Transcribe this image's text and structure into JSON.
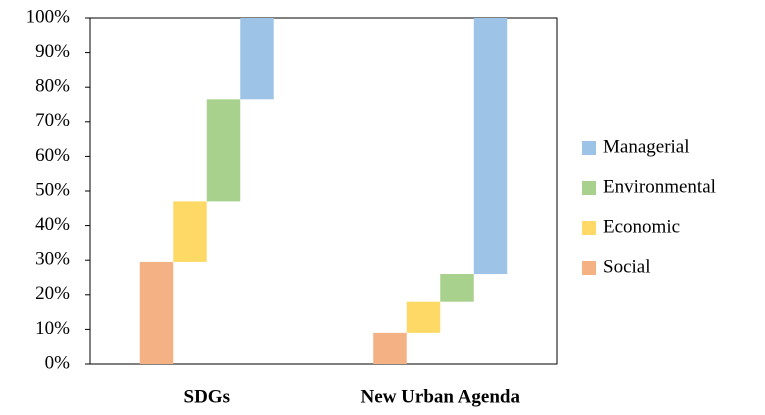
{
  "chart_data": {
    "type": "waterfall-stack",
    "categories": [
      "SDGs",
      "New Urban Agenda"
    ],
    "series": [
      {
        "name": "Social",
        "color": "#f4b183",
        "values": [
          29.5,
          9
        ]
      },
      {
        "name": "Economic",
        "color": "#ffd966",
        "values": [
          17.5,
          9
        ]
      },
      {
        "name": "Environmental",
        "color": "#a9d18e",
        "values": [
          29.5,
          8
        ]
      },
      {
        "name": "Managerial",
        "color": "#9dc3e6",
        "values": [
          23.5,
          74
        ]
      }
    ],
    "ylim": [
      0,
      100
    ],
    "yticks": [
      {
        "value": 0,
        "label": "0%"
      },
      {
        "value": 10,
        "label": "10%"
      },
      {
        "value": 20,
        "label": "20%"
      },
      {
        "value": 30,
        "label": "30%"
      },
      {
        "value": 40,
        "label": "40%"
      },
      {
        "value": 50,
        "label": "50%"
      },
      {
        "value": 60,
        "label": "60%"
      },
      {
        "value": 70,
        "label": "70%"
      },
      {
        "value": 80,
        "label": "80%"
      },
      {
        "value": 90,
        "label": "90%"
      },
      {
        "value": 100,
        "label": "100%"
      }
    ],
    "legend": "right"
  }
}
